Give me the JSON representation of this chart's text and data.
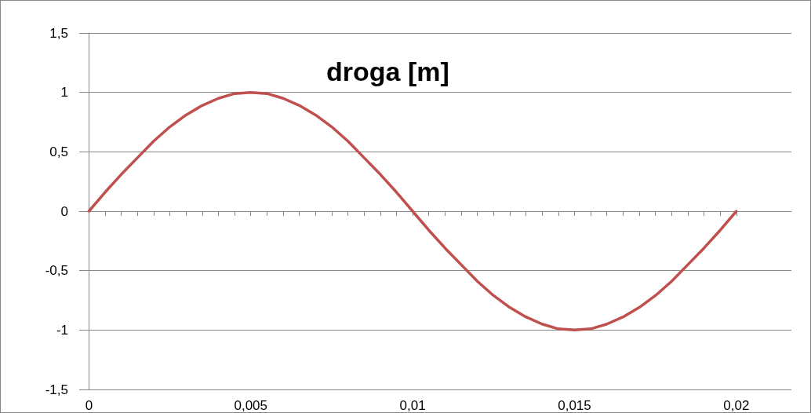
{
  "chart_data": {
    "type": "line",
    "title": "droga [m]",
    "x": [
      0,
      0.0005,
      0.001,
      0.0015,
      0.002,
      0.0025,
      0.003,
      0.0035,
      0.004,
      0.0045,
      0.005,
      0.0055,
      0.006,
      0.0065,
      0.007,
      0.0075,
      0.008,
      0.0085,
      0.009,
      0.0095,
      0.01,
      0.0105,
      0.011,
      0.0115,
      0.012,
      0.0125,
      0.013,
      0.0135,
      0.014,
      0.0145,
      0.015,
      0.0155,
      0.016,
      0.0165,
      0.017,
      0.0175,
      0.018,
      0.0185,
      0.019,
      0.0195,
      0.02
    ],
    "series": [
      {
        "color": "#c0504d",
        "values": [
          0,
          0.16,
          0.31,
          0.45,
          0.59,
          0.71,
          0.81,
          0.89,
          0.95,
          0.99,
          1,
          0.99,
          0.95,
          0.89,
          0.81,
          0.71,
          0.59,
          0.45,
          0.31,
          0.16,
          0,
          -0.16,
          -0.31,
          -0.45,
          -0.59,
          -0.71,
          -0.81,
          -0.89,
          -0.95,
          -0.99,
          -1,
          -0.99,
          -0.95,
          -0.89,
          -0.81,
          -0.71,
          -0.59,
          -0.45,
          -0.31,
          -0.16,
          0
        ]
      }
    ],
    "xlim": [
      -0.0003,
      0.0217
    ],
    "xticks": [
      0,
      {
        "value": 0.0005,
        "label": null
      },
      {
        "value": 0.001,
        "label": null
      },
      {
        "value": 0.0015,
        "label": null
      },
      {
        "value": 0.002,
        "label": null
      },
      {
        "value": 0.0025,
        "label": null
      },
      {
        "value": 0.003,
        "label": null
      },
      {
        "value": 0.0035,
        "label": null
      },
      {
        "value": 0.004,
        "label": null
      },
      {
        "value": 0.0045,
        "label": null
      },
      {
        "value": 0.005,
        "label": "0,005"
      },
      {
        "value": 0.0055,
        "label": null
      },
      {
        "value": 0.006,
        "label": null
      },
      {
        "value": 0.0065,
        "label": null
      },
      {
        "value": 0.007,
        "label": null
      },
      {
        "value": 0.0075,
        "label": null
      },
      {
        "value": 0.008,
        "label": null
      },
      {
        "value": 0.0085,
        "label": null
      },
      {
        "value": 0.009,
        "label": null
      },
      {
        "value": 0.0095,
        "label": null
      },
      {
        "value": 0.01,
        "label": "0,01"
      },
      {
        "value": 0.0105,
        "label": null
      },
      {
        "value": 0.011,
        "label": null
      },
      {
        "value": 0.0115,
        "label": null
      },
      {
        "value": 0.012,
        "label": null
      },
      {
        "value": 0.0125,
        "label": null
      },
      {
        "value": 0.013,
        "label": null
      },
      {
        "value": 0.0135,
        "label": null
      },
      {
        "value": 0.014,
        "label": null
      },
      {
        "value": 0.0145,
        "label": null
      },
      {
        "value": 0.015,
        "label": "0,015"
      },
      {
        "value": 0.0155,
        "label": null
      },
      {
        "value": 0.016,
        "label": null
      },
      {
        "value": 0.0165,
        "label": null
      },
      {
        "value": 0.017,
        "label": null
      },
      {
        "value": 0.0175,
        "label": null
      },
      {
        "value": 0.018,
        "label": null
      },
      {
        "value": 0.0185,
        "label": null
      },
      {
        "value": 0.019,
        "label": null
      },
      {
        "value": 0.0195,
        "label": null
      },
      {
        "value": 0.02,
        "label": "0,02"
      }
    ],
    "ylim": [
      -1.5,
      1.5
    ],
    "yticks": [
      {
        "value": -1.5,
        "label": "-1,5"
      },
      -1,
      {
        "value": -0.5,
        "label": "-0,5"
      },
      0,
      {
        "value": 0.5,
        "label": "0,5"
      },
      1,
      {
        "value": 1.5,
        "label": "1,5"
      }
    ],
    "grid": "y",
    "marker": "none",
    "line_style": "solid"
  }
}
